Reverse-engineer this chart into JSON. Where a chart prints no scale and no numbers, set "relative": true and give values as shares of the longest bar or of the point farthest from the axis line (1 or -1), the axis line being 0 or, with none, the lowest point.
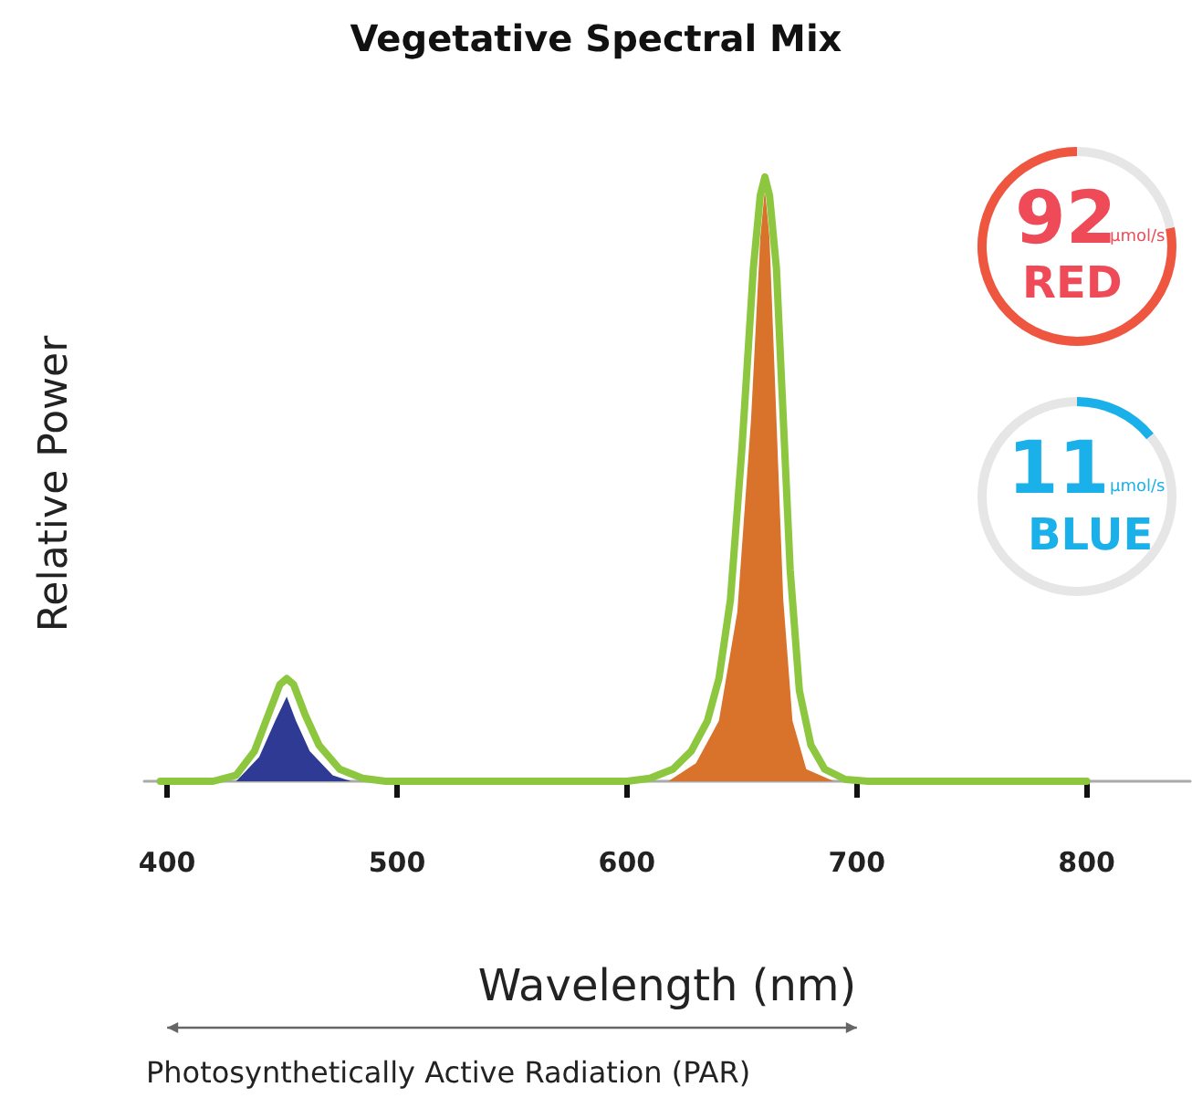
{
  "chart_data": {
    "type": "line",
    "title": "Vegetative Spectral Mix",
    "xlabel": "Wavelength (nm)",
    "ylabel": "Relative Power",
    "relative": true,
    "xlim": [
      390,
      845
    ],
    "xticks": [
      400,
      500,
      600,
      700,
      800
    ],
    "grid": false,
    "marker": "none",
    "annotations": [
      "92",
      "µmol/s",
      "RED",
      "11",
      "µmol/s",
      "BLUE",
      "Photosynthetically Active Radiation (PAR)"
    ],
    "series": [
      {
        "type": "area",
        "color": "#2e3a93",
        "x": [
          430,
          440,
          447,
          452,
          456,
          462,
          472,
          480
        ],
        "values": [
          0,
          0.04,
          0.1,
          0.14,
          0.1,
          0.05,
          0.01,
          0
        ]
      },
      {
        "type": "area",
        "color": "#d9722a",
        "x": [
          618,
          630,
          640,
          648,
          654,
          658,
          660,
          662,
          665,
          668,
          672,
          678,
          690
        ],
        "values": [
          0,
          0.03,
          0.1,
          0.28,
          0.6,
          0.9,
          0.98,
          0.9,
          0.6,
          0.3,
          0.1,
          0.02,
          0
        ]
      },
      {
        "color": "#8dc63f",
        "x": [
          397,
          420,
          430,
          438,
          444,
          449,
          452,
          455,
          460,
          466,
          475,
          485,
          495,
          600,
          610,
          620,
          628,
          635,
          640,
          645,
          650,
          655,
          658,
          660,
          662,
          665,
          668,
          671,
          675,
          680,
          686,
          695,
          705,
          800
        ],
        "values": [
          0,
          0,
          0.01,
          0.05,
          0.11,
          0.16,
          0.17,
          0.16,
          0.11,
          0.06,
          0.02,
          0.005,
          0,
          0,
          0.005,
          0.02,
          0.05,
          0.1,
          0.17,
          0.3,
          0.55,
          0.85,
          0.97,
          1,
          0.97,
          0.85,
          0.6,
          0.35,
          0.15,
          0.06,
          0.02,
          0.003,
          0,
          0
        ]
      }
    ]
  }
}
